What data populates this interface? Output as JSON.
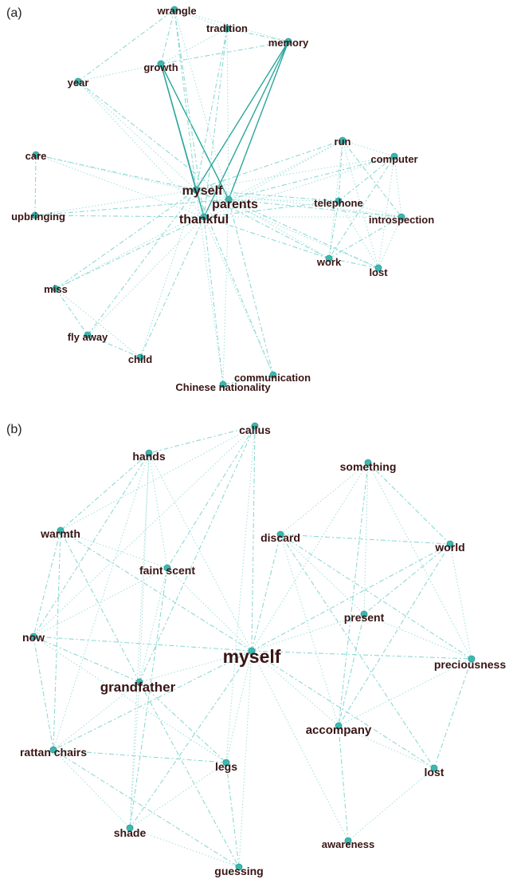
{
  "panel_a": {
    "label": "(a)",
    "nodes": [
      {
        "id": "wrangle",
        "text": "wrangle"
      },
      {
        "id": "tradition",
        "text": "tradition"
      },
      {
        "id": "memory",
        "text": "memory"
      },
      {
        "id": "growth",
        "text": "growth"
      },
      {
        "id": "year",
        "text": "year"
      },
      {
        "id": "care",
        "text": "care"
      },
      {
        "id": "upbringing",
        "text": "upbringing"
      },
      {
        "id": "myself",
        "text": "myself"
      },
      {
        "id": "parents",
        "text": "parents"
      },
      {
        "id": "thankful",
        "text": "thankful"
      },
      {
        "id": "run",
        "text": "run"
      },
      {
        "id": "computer",
        "text": "computer"
      },
      {
        "id": "telephone",
        "text": "telephone"
      },
      {
        "id": "introspection",
        "text": "introspection"
      },
      {
        "id": "work",
        "text": "work"
      },
      {
        "id": "lost",
        "text": "lost"
      },
      {
        "id": "miss",
        "text": "miss"
      },
      {
        "id": "flyaway",
        "text": "fly away"
      },
      {
        "id": "child",
        "text": "child"
      },
      {
        "id": "communication",
        "text": "communication"
      },
      {
        "id": "chinese",
        "text": "Chinese nationality"
      }
    ]
  },
  "panel_b": {
    "label": "(b)",
    "nodes": [
      {
        "id": "callus",
        "text": "callus"
      },
      {
        "id": "hands",
        "text": "hands"
      },
      {
        "id": "something",
        "text": "something"
      },
      {
        "id": "warmth",
        "text": "warmth"
      },
      {
        "id": "discard",
        "text": "discard"
      },
      {
        "id": "world",
        "text": "world"
      },
      {
        "id": "faintscent",
        "text": "faint scent"
      },
      {
        "id": "present",
        "text": "present"
      },
      {
        "id": "now",
        "text": "now"
      },
      {
        "id": "myself",
        "text": "myself"
      },
      {
        "id": "preciousness",
        "text": "preciousness"
      },
      {
        "id": "grandfather",
        "text": "grandfather"
      },
      {
        "id": "accompany",
        "text": "accompany"
      },
      {
        "id": "rattan",
        "text": "rattan chairs"
      },
      {
        "id": "legs",
        "text": "legs"
      },
      {
        "id": "lost",
        "text": "lost"
      },
      {
        "id": "shade",
        "text": "shade"
      },
      {
        "id": "awareness",
        "text": "awareness"
      },
      {
        "id": "guessing",
        "text": "guessing"
      }
    ]
  }
}
